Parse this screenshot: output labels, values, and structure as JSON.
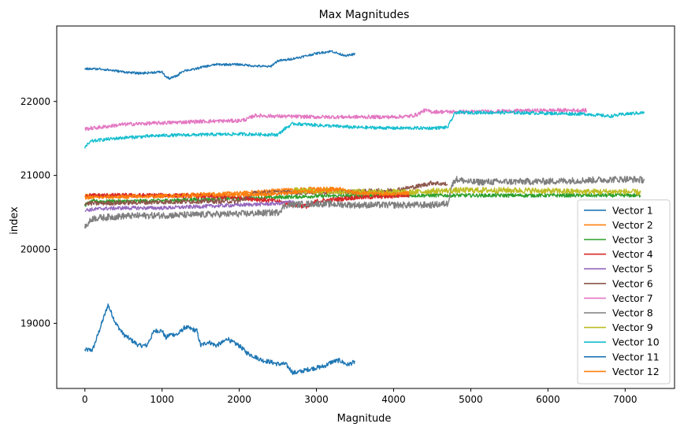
{
  "chart_data": {
    "type": "line",
    "title": "Max Magnitudes",
    "xlabel": "Magnitude",
    "ylabel": "index",
    "xlim": [
      -365,
      7640
    ],
    "ylim": [
      18120,
      23020
    ],
    "x_ticks": [
      0,
      1000,
      2000,
      3000,
      4000,
      5000,
      6000,
      7000
    ],
    "y_ticks": [
      19000,
      20000,
      21000,
      22000
    ],
    "grid": false,
    "legend_position": "lower-right",
    "series": [
      {
        "name": "Vector 1",
        "color": "#1f77b4",
        "noise": 30,
        "x": [
          0,
          100,
          300,
          400,
          500,
          700,
          800,
          900,
          1000,
          1050,
          1100,
          1200,
          1300,
          1450,
          1500,
          1600,
          1700,
          1800,
          1850,
          1900,
          2000,
          2100,
          2200,
          2300,
          2400,
          2500,
          2600,
          2700,
          2800,
          2900,
          3000,
          3100,
          3200,
          3300,
          3400,
          3500
        ],
        "y": [
          18640,
          18640,
          19250,
          19000,
          18850,
          18700,
          18700,
          18900,
          18900,
          18800,
          18850,
          18850,
          18950,
          18900,
          18700,
          18750,
          18700,
          18750,
          18800,
          18750,
          18700,
          18600,
          18550,
          18500,
          18480,
          18450,
          18450,
          18330,
          18350,
          18380,
          18400,
          18420,
          18480,
          18500,
          18440,
          18480
        ]
      },
      {
        "name": "Vector 2",
        "color": "#ff7f0e",
        "noise": 25,
        "x": [
          0,
          1000,
          2000,
          2500,
          3000,
          3200,
          3500,
          4000,
          4200
        ],
        "y": [
          20720,
          20730,
          20760,
          20800,
          20820,
          20820,
          20760,
          20770,
          20760
        ]
      },
      {
        "name": "Vector 3",
        "color": "#2ca02c",
        "noise": 25,
        "x": [
          0,
          100,
          500,
          1000,
          2000,
          3000,
          4000,
          4700,
          6000,
          7000,
          7200
        ],
        "y": [
          20600,
          20650,
          20650,
          20660,
          20690,
          20720,
          20730,
          20730,
          20730,
          20730,
          20730
        ]
      },
      {
        "name": "Vector 4",
        "color": "#d62728",
        "noise": 30,
        "x": [
          0,
          500,
          1000,
          1500,
          2000,
          2500,
          2700,
          2900,
          3000,
          3500,
          4000,
          4200
        ],
        "y": [
          20730,
          20730,
          20730,
          20720,
          20700,
          20650,
          20600,
          20580,
          20650,
          20700,
          20720,
          20740
        ]
      },
      {
        "name": "Vector 5",
        "color": "#9467bd",
        "noise": 25,
        "x": [
          0,
          200,
          500,
          1000,
          1500,
          2000,
          2500,
          2700
        ],
        "y": [
          20530,
          20550,
          20560,
          20560,
          20580,
          20600,
          20620,
          20650
        ]
      },
      {
        "name": "Vector 6",
        "color": "#8c564b",
        "noise": 30,
        "x": [
          0,
          500,
          1000,
          1500,
          2000,
          2200,
          2500,
          3000,
          3500,
          4000,
          4300,
          4500,
          4700
        ],
        "y": [
          20620,
          20630,
          20640,
          20650,
          20650,
          20760,
          20770,
          20770,
          20780,
          20800,
          20850,
          20900,
          20880
        ]
      },
      {
        "name": "Vector 7",
        "color": "#e377c2",
        "noise": 25,
        "x": [
          0,
          200,
          500,
          1000,
          1500,
          2000,
          2100,
          2200,
          2500,
          3000,
          3500,
          4000,
          4200,
          4300,
          4400,
          4500,
          5000,
          6000,
          6500
        ],
        "y": [
          21630,
          21650,
          21690,
          21710,
          21730,
          21740,
          21760,
          21810,
          21800,
          21790,
          21790,
          21790,
          21800,
          21820,
          21880,
          21860,
          21860,
          21880,
          21880
        ]
      },
      {
        "name": "Vector 8",
        "color": "#7f7f7f",
        "noise": 45,
        "x": [
          0,
          100,
          500,
          1000,
          1500,
          2000,
          2500,
          2600,
          3000,
          3500,
          4000,
          4500,
          4700,
          4750,
          4800,
          5000,
          6000,
          7000,
          7250
        ],
        "y": [
          20300,
          20420,
          20450,
          20460,
          20470,
          20480,
          20500,
          20600,
          20620,
          20600,
          20600,
          20600,
          20620,
          20850,
          20950,
          20910,
          20920,
          20950,
          20940
        ]
      },
      {
        "name": "Vector 9",
        "color": "#bcbd22",
        "noise": 40,
        "x": [
          2700,
          3000,
          3500,
          4000,
          4200,
          4500,
          5000,
          5500,
          6000,
          6500,
          7000,
          7200
        ],
        "y": [
          20800,
          20790,
          20780,
          20780,
          20770,
          20790,
          20800,
          20800,
          20790,
          20780,
          20780,
          20770
        ]
      },
      {
        "name": "Vector 10",
        "color": "#17becf",
        "noise": 22,
        "x": [
          0,
          80,
          200,
          500,
          1000,
          1500,
          2000,
          2500,
          2600,
          2700,
          3000,
          3500,
          4000,
          4500,
          4700,
          4800,
          5000,
          5500,
          6000,
          6500,
          6800,
          7000,
          7250
        ],
        "y": [
          21380,
          21460,
          21480,
          21510,
          21540,
          21550,
          21560,
          21550,
          21640,
          21700,
          21680,
          21650,
          21640,
          21640,
          21650,
          21850,
          21850,
          21850,
          21840,
          21830,
          21800,
          21830,
          21850
        ]
      },
      {
        "name": "Vector 11",
        "color": "#1f77b4",
        "noise": 15,
        "x": [
          0,
          200,
          500,
          700,
          1000,
          1050,
          1100,
          1200,
          1250,
          1300,
          1400,
          1500,
          1700,
          2000,
          2200,
          2400,
          2500,
          2600,
          2700,
          2800,
          3000,
          3200,
          3300,
          3400,
          3500
        ],
        "y": [
          22440,
          22440,
          22400,
          22380,
          22400,
          22330,
          22310,
          22350,
          22400,
          22420,
          22430,
          22460,
          22500,
          22500,
          22480,
          22470,
          22550,
          22560,
          22580,
          22600,
          22650,
          22680,
          22640,
          22620,
          22640
        ]
      },
      {
        "name": "Vector 12",
        "color": "#ff7f0e",
        "noise": 25,
        "x": [
          0,
          1000,
          1500,
          2000,
          2500,
          2800,
          3000,
          3200,
          3300,
          3500,
          4000,
          4200
        ],
        "y": [
          20700,
          20720,
          20730,
          20740,
          20750,
          20780,
          20790,
          20800,
          20820,
          20760,
          20750,
          20760
        ]
      }
    ]
  }
}
